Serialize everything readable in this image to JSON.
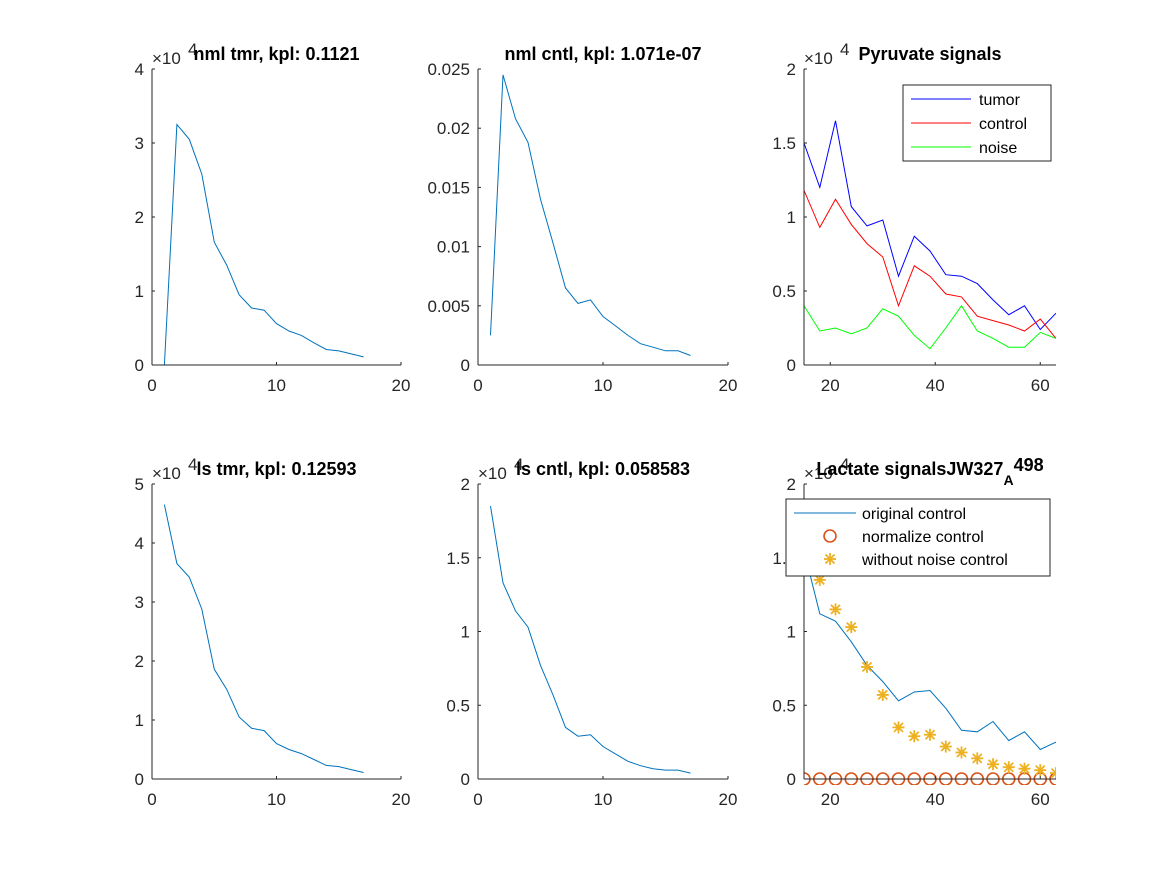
{
  "chart_data": [
    {
      "id": "p1",
      "type": "line",
      "title": "nml tmr, kpl: 0.1121",
      "exponent_base": "×10",
      "exponent_power": "4",
      "xlim": [
        0,
        20
      ],
      "ylim": [
        0,
        4
      ],
      "xticks": [
        0,
        10,
        20
      ],
      "yticks": [
        0,
        1,
        2,
        3,
        4
      ],
      "series": [
        {
          "color": "#0072BD",
          "x": [
            1,
            2,
            3,
            4,
            5,
            6,
            7,
            8,
            9,
            10,
            11,
            12,
            13,
            14,
            15,
            16,
            17
          ],
          "y": [
            0,
            3.25,
            3.05,
            2.58,
            1.66,
            1.35,
            0.95,
            0.77,
            0.74,
            0.56,
            0.46,
            0.4,
            0.3,
            0.21,
            0.19,
            0.15,
            0.11
          ]
        }
      ]
    },
    {
      "id": "p2",
      "type": "line",
      "title": "nml cntl, kpl: 1.071e-07",
      "xlim": [
        0,
        20
      ],
      "ylim": [
        0,
        0.025
      ],
      "xticks": [
        0,
        10,
        20
      ],
      "yticks": [
        0,
        0.005,
        0.01,
        0.015,
        0.02,
        0.025
      ],
      "ytick_labels": [
        "0",
        "0.005",
        "0.01",
        "0.015",
        "0.02",
        "0.025"
      ],
      "series": [
        {
          "color": "#0072BD",
          "x": [
            1,
            2,
            3,
            4,
            5,
            6,
            7,
            8,
            9,
            10,
            11,
            12,
            13,
            14,
            15,
            16,
            17
          ],
          "y": [
            0.0025,
            0.0245,
            0.0208,
            0.0188,
            0.014,
            0.0103,
            0.0065,
            0.0052,
            0.0055,
            0.0041,
            0.0033,
            0.0025,
            0.0018,
            0.0015,
            0.0012,
            0.0012,
            0.0008
          ]
        }
      ]
    },
    {
      "id": "p3",
      "type": "line",
      "title": "Pyruvate signals",
      "exponent_base": "×10",
      "exponent_power": "4",
      "xlim": [
        15,
        63
      ],
      "ylim": [
        0,
        2
      ],
      "xticks": [
        20,
        40,
        60
      ],
      "yticks": [
        0,
        0.5,
        1,
        1.5,
        2
      ],
      "ytick_labels": [
        "0",
        "0.5",
        "1",
        "1.5",
        "2"
      ],
      "legend": "top-right",
      "series": [
        {
          "name": "tumor",
          "color": "#0000FF",
          "x": [
            15,
            18,
            21,
            24,
            27,
            30,
            33,
            36,
            39,
            42,
            45,
            48,
            51,
            54,
            57,
            60,
            63
          ],
          "y": [
            1.5,
            1.2,
            1.65,
            1.07,
            0.94,
            0.98,
            0.6,
            0.87,
            0.77,
            0.61,
            0.6,
            0.55,
            0.44,
            0.34,
            0.4,
            0.24,
            0.35
          ]
        },
        {
          "name": "control",
          "color": "#FF0000",
          "x": [
            15,
            18,
            21,
            24,
            27,
            30,
            33,
            36,
            39,
            42,
            45,
            48,
            51,
            54,
            57,
            60,
            63
          ],
          "y": [
            1.18,
            0.93,
            1.12,
            0.95,
            0.82,
            0.73,
            0.4,
            0.67,
            0.6,
            0.48,
            0.46,
            0.33,
            0.3,
            0.27,
            0.23,
            0.31,
            0.18
          ]
        },
        {
          "name": "noise",
          "color": "#00FF00",
          "x": [
            15,
            18,
            21,
            24,
            27,
            30,
            33,
            36,
            39,
            42,
            45,
            48,
            51,
            54,
            57,
            60,
            63
          ],
          "y": [
            0.4,
            0.23,
            0.25,
            0.21,
            0.25,
            0.38,
            0.33,
            0.2,
            0.11,
            0.25,
            0.4,
            0.23,
            0.18,
            0.12,
            0.12,
            0.22,
            0.18
          ]
        }
      ]
    },
    {
      "id": "p4",
      "type": "line",
      "title": "ls tmr, kpl: 0.12593",
      "exponent_base": "×10",
      "exponent_power": "4",
      "xlim": [
        0,
        20
      ],
      "ylim": [
        0,
        5
      ],
      "xticks": [
        0,
        10,
        20
      ],
      "yticks": [
        0,
        1,
        2,
        3,
        4,
        5
      ],
      "series": [
        {
          "color": "#0072BD",
          "x": [
            1,
            2,
            3,
            4,
            5,
            6,
            7,
            8,
            9,
            10,
            11,
            12,
            13,
            14,
            15,
            16,
            17
          ],
          "y": [
            4.65,
            3.65,
            3.42,
            2.88,
            1.86,
            1.52,
            1.05,
            0.86,
            0.82,
            0.6,
            0.5,
            0.43,
            0.33,
            0.23,
            0.21,
            0.16,
            0.11
          ]
        }
      ]
    },
    {
      "id": "p5",
      "type": "line",
      "title": "ls cntl, kpl: 0.058583",
      "exponent_base": "×10",
      "exponent_power": "4",
      "xlim": [
        0,
        20
      ],
      "ylim": [
        0,
        2
      ],
      "xticks": [
        0,
        10,
        20
      ],
      "yticks": [
        0,
        0.5,
        1,
        1.5,
        2
      ],
      "ytick_labels": [
        "0",
        "0.5",
        "1",
        "1.5",
        "2"
      ],
      "series": [
        {
          "color": "#0072BD",
          "x": [
            1,
            2,
            3,
            4,
            5,
            6,
            7,
            8,
            9,
            10,
            11,
            12,
            13,
            14,
            15,
            16,
            17
          ],
          "y": [
            1.85,
            1.33,
            1.14,
            1.03,
            0.77,
            0.57,
            0.35,
            0.29,
            0.3,
            0.22,
            0.17,
            0.12,
            0.09,
            0.07,
            0.06,
            0.06,
            0.04
          ]
        }
      ]
    },
    {
      "id": "p6",
      "type": "line",
      "title": "Lactate signalsJW327",
      "title_subscript": "A",
      "title_suffix": "498",
      "exponent_base": "×10",
      "exponent_power": "4",
      "xlim": [
        15,
        63
      ],
      "ylim": [
        0,
        2
      ],
      "xticks": [
        20,
        40,
        60
      ],
      "yticks": [
        0,
        0.5,
        1,
        1.5,
        2
      ],
      "ytick_labels": [
        "0",
        "0.5",
        "1",
        "1.5",
        "2"
      ],
      "legend": "top-right",
      "series": [
        {
          "name": "original control",
          "color": "#0072BD",
          "marker": "none",
          "x": [
            15,
            18,
            21,
            24,
            27,
            30,
            33,
            36,
            39,
            42,
            45,
            48,
            51,
            54,
            57,
            60,
            63
          ],
          "y": [
            1.55,
            1.12,
            1.07,
            0.93,
            0.77,
            0.66,
            0.53,
            0.59,
            0.6,
            0.48,
            0.33,
            0.32,
            0.39,
            0.26,
            0.32,
            0.2,
            0.25
          ]
        },
        {
          "name": "normalize control",
          "color": "#D95319",
          "marker": "circle",
          "x": [
            15,
            18,
            21,
            24,
            27,
            30,
            33,
            36,
            39,
            42,
            45,
            48,
            51,
            54,
            57,
            60,
            63
          ],
          "y": [
            0,
            0,
            0,
            0,
            0,
            0,
            0,
            0,
            0,
            0,
            0,
            0,
            0,
            0,
            0,
            0,
            0
          ]
        },
        {
          "name": "without noise control",
          "color": "#EDB120",
          "marker": "asterisk",
          "x": [
            15,
            18,
            21,
            24,
            27,
            30,
            33,
            36,
            39,
            42,
            45,
            48,
            51,
            54,
            57,
            60,
            63
          ],
          "y": [
            1.5,
            1.35,
            1.15,
            1.03,
            0.76,
            0.57,
            0.35,
            0.29,
            0.3,
            0.22,
            0.18,
            0.14,
            0.1,
            0.08,
            0.07,
            0.06,
            0.04
          ]
        }
      ]
    }
  ]
}
